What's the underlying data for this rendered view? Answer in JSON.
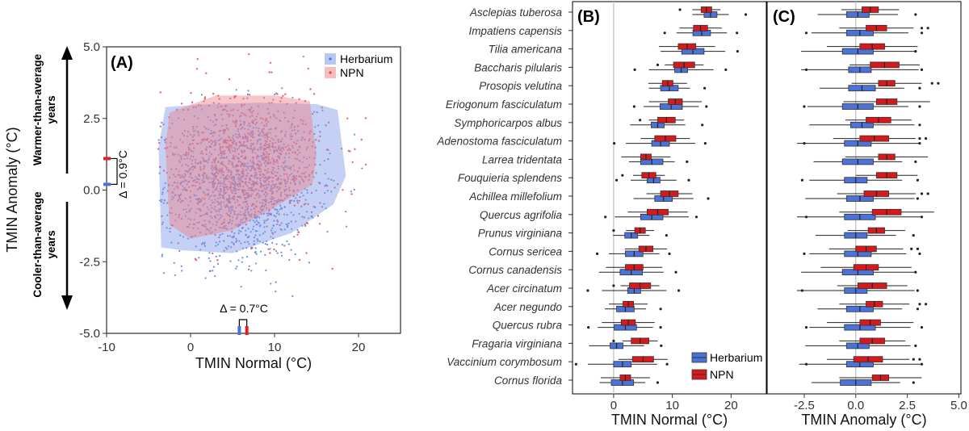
{
  "chart_data": [
    {
      "panel": "(A)",
      "type": "scatter",
      "xlabel": "TMIN Normal (°C)",
      "ylabel": "TMIN Anomaly (°C)",
      "xlim": [
        -10,
        25
      ],
      "ylim": [
        -5,
        5
      ],
      "x_ticks": [
        "-10",
        "0",
        "10",
        "20"
      ],
      "y_ticks": [
        "5.0",
        "2.5",
        "0.0",
        "-2.5",
        "-5.0"
      ],
      "series": [
        {
          "name": "Herbarium",
          "color": "#4A72D9",
          "hull": [
            [
              -3.5,
              -2
            ],
            [
              -1,
              -2.1
            ],
            [
              5,
              -2.2
            ],
            [
              12,
              -1.5
            ],
            [
              17,
              -0.5
            ],
            [
              18.5,
              0.5
            ],
            [
              17.5,
              2.8
            ],
            [
              15,
              3.0
            ],
            [
              8,
              3.05
            ],
            [
              2,
              3.0
            ],
            [
              -3,
              2.9
            ],
            [
              -3.8,
              1.5
            ]
          ]
        },
        {
          "name": "NPN",
          "color": "#E0404A",
          "hull": [
            [
              -2.5,
              -1.2
            ],
            [
              0,
              -1.7
            ],
            [
              5,
              -1.4
            ],
            [
              10,
              -0.6
            ],
            [
              14.5,
              0.2
            ],
            [
              15,
              1.2
            ],
            [
              14.2,
              3.1
            ],
            [
              10,
              3.3
            ],
            [
              3,
              3.3
            ],
            [
              -2.5,
              2.7
            ],
            [
              -3,
              1.5
            ]
          ]
        }
      ],
      "mean_markers": {
        "herbarium_anomaly": 0.2,
        "npn_anomaly": 1.1,
        "herbarium_normal": 5.9,
        "npn_normal": 6.6
      },
      "annotations": {
        "anomaly_delta": "Δ = 0.9°C",
        "normal_delta": "Δ = 0.7°C",
        "warmer_label_line1": "Warmer-than-average",
        "warmer_label_line2": "years",
        "cooler_label_line1": "Cooler-than-average",
        "cooler_label_line2": "years"
      }
    },
    {
      "panel": "(B)",
      "type": "boxplot",
      "xlabel": "TMIN Normal (°C)",
      "xlim": [
        -7,
        26
      ],
      "x_ticks": [
        "0",
        "10",
        "20"
      ],
      "series_names": [
        "Herbarium",
        "NPN"
      ],
      "series_colors": [
        "#4A72D9",
        "#D7191C"
      ],
      "species": [
        "Asclepias tuberosa",
        "Impatiens capensis",
        "Tilia americana",
        "Baccharis pilularis",
        "Prosopis velutina",
        "Eriogonum fasciculatum",
        "Symphoricarpos albus",
        "Adenostoma fasciculatum",
        "Larrea tridentata",
        "Fouquieria splendens",
        "Achillea millefolium",
        "Quercus agrifolia",
        "Prunus virginiana",
        "Cornus sericea",
        "Cornus canadensis",
        "Acer circinatum",
        "Acer negundo",
        "Quercus rubra",
        "Fragaria virginiana",
        "Vaccinium corymbosum",
        "Cornus florida"
      ],
      "herbarium_medians": [
        16.5,
        15.0,
        13.5,
        11.5,
        9.5,
        9.8,
        7.5,
        8.0,
        6.5,
        6.8,
        8.5,
        6.5,
        3.0,
        3.5,
        3.0,
        3.5,
        2.0,
        2.0,
        0.5,
        1.5,
        1.5
      ],
      "npn_medians": [
        15.8,
        14.8,
        12.5,
        12.0,
        9.2,
        10.5,
        9.0,
        8.8,
        5.5,
        6.0,
        9.5,
        7.5,
        4.5,
        5.5,
        3.5,
        4.5,
        2.5,
        2.5,
        4.5,
        5.0,
        2.0
      ]
    },
    {
      "panel": "(C)",
      "type": "boxplot",
      "xlabel": "TMIN Anomaly (°C)",
      "xlim": [
        -4.3,
        5.1
      ],
      "x_ticks": [
        "-2.5",
        "0.0",
        "2.5",
        "5.0"
      ],
      "herbarium_medians": [
        0.1,
        0.2,
        0.1,
        0.2,
        0.3,
        0.1,
        0.3,
        0.1,
        0.1,
        0.0,
        0.2,
        0.2,
        0.0,
        0.1,
        0.1,
        0.0,
        0.2,
        0.2,
        0.1,
        0.2,
        0.0
      ],
      "npn_medians": [
        0.7,
        1.0,
        0.8,
        1.4,
        1.5,
        1.5,
        1.1,
        0.9,
        1.5,
        1.5,
        1.0,
        1.5,
        1.0,
        0.5,
        0.5,
        0.8,
        0.9,
        0.7,
        0.8,
        0.6,
        1.2
      ]
    }
  ],
  "legend": {
    "herbarium": "Herbarium",
    "npn": "NPN"
  },
  "panel_labels": {
    "a": "(A)",
    "b": "(B)",
    "c": "(C)"
  }
}
